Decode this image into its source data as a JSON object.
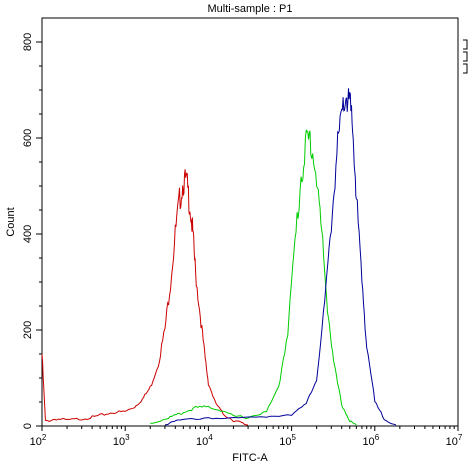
{
  "chart_data": {
    "type": "line",
    "title": "Multi-sample : P1",
    "xlabel": "FITC-A",
    "ylabel": "Count",
    "x_scale": "log10",
    "xlim": [
      100,
      10000000
    ],
    "ylim": [
      0,
      850
    ],
    "x_ticks": [
      {
        "base": "10",
        "exp": "2"
      },
      {
        "base": "10",
        "exp": "3"
      },
      {
        "base": "10",
        "exp": "4"
      },
      {
        "base": "10",
        "exp": "5"
      },
      {
        "base": "10",
        "exp": "6"
      },
      {
        "base": "10",
        "exp": "7"
      }
    ],
    "y_ticks": [
      "0",
      "200",
      "400",
      "600",
      "800"
    ],
    "grid": false,
    "series": [
      {
        "color": "#cc0000",
        "x": [
          100,
          110,
          150,
          200,
          300,
          400,
          500,
          700,
          1000,
          1300,
          1600,
          2000,
          2500,
          3000,
          3500,
          4000,
          4500,
          5000,
          5500,
          6000,
          6500,
          7000,
          8000,
          9000,
          10000,
          12000,
          15000,
          20000,
          25000,
          30000
        ],
        "y": [
          150,
          10,
          15,
          12,
          15,
          18,
          22,
          28,
          30,
          40,
          55,
          80,
          130,
          200,
          300,
          400,
          470,
          510,
          505,
          460,
          400,
          320,
          230,
          150,
          90,
          50,
          25,
          12,
          6,
          2
        ]
      },
      {
        "color": "#00cc00",
        "x": [
          2000,
          3000,
          4000,
          5000,
          7000,
          10000,
          15000,
          20000,
          30000,
          50000,
          70000,
          90000,
          110000,
          130000,
          150000,
          170000,
          200000,
          230000,
          270000,
          320000,
          400000,
          500000,
          600000
        ],
        "y": [
          5,
          15,
          22,
          28,
          38,
          40,
          32,
          20,
          18,
          30,
          80,
          200,
          380,
          520,
          590,
          595,
          520,
          400,
          250,
          130,
          45,
          10,
          2
        ]
      },
      {
        "color": "#000099",
        "x": [
          3000,
          5000,
          10000,
          20000,
          50000,
          100000,
          150000,
          200000,
          250000,
          300000,
          350000,
          400000,
          450000,
          500000,
          550000,
          600000,
          700000,
          800000,
          1000000,
          1300000,
          1800000
        ],
        "y": [
          5,
          12,
          18,
          15,
          20,
          25,
          45,
          100,
          250,
          420,
          570,
          640,
          690,
          670,
          600,
          480,
          300,
          170,
          50,
          15,
          2
        ]
      }
    ],
    "legend": [
      "",
      "",
      ""
    ]
  }
}
